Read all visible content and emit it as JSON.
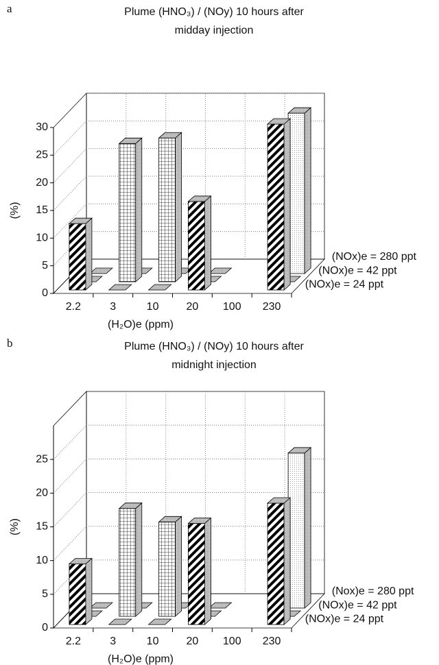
{
  "chart_data": [
    {
      "type": "bar3d",
      "label": "a",
      "title": [
        "Plume (HNO₃) / (NOy) 10 hours after",
        "midday injection"
      ],
      "xlabel": "(H₂O)e (ppm)",
      "ylabel": "(%)",
      "categories": [
        "2.2",
        "3",
        "10",
        "20",
        "100",
        "230"
      ],
      "ylim": [
        0,
        30
      ],
      "yticks": [
        0,
        5,
        10,
        15,
        20,
        25,
        30
      ],
      "grid": true,
      "series": [
        {
          "name": "(NOx)e = 24 ppt",
          "pattern": "hatch",
          "color": "#000000",
          "values": [
            12,
            0,
            0,
            16,
            0,
            30
          ]
        },
        {
          "name": "(NOx)e = 42 ppt",
          "pattern": "grid",
          "color": "#000000",
          "values": [
            0,
            25,
            26,
            0,
            0,
            0
          ]
        },
        {
          "name": "(NOx)e = 280 ppt",
          "pattern": "dots",
          "color": "#999999",
          "values": [
            0,
            0,
            0,
            0,
            0,
            29
          ]
        }
      ]
    },
    {
      "type": "bar3d",
      "label": "b",
      "title": [
        "Plume (HNO₃) / (NOy) 10 hours after",
        "midnight injection"
      ],
      "xlabel": "(H₂O)e (ppm)",
      "ylabel": "(%)",
      "categories": [
        "2.2",
        "3",
        "10",
        "20",
        "100",
        "230"
      ],
      "ylim": [
        0,
        30
      ],
      "yticks": [
        0,
        5,
        10,
        15,
        20,
        25
      ],
      "grid": true,
      "series": [
        {
          "name": "(NOx)e = 24 ppt",
          "pattern": "hatch",
          "color": "#000000",
          "values": [
            9,
            0,
            0,
            15,
            0,
            18
          ]
        },
        {
          "name": "(NOx)e = 42 ppt",
          "pattern": "grid",
          "color": "#000000",
          "values": [
            0,
            16,
            14,
            0,
            0,
            0
          ]
        },
        {
          "name": "(Nox)e = 280 ppt",
          "pattern": "dots",
          "color": "#999999",
          "values": [
            0,
            0,
            0,
            0,
            0,
            23
          ]
        }
      ]
    }
  ]
}
